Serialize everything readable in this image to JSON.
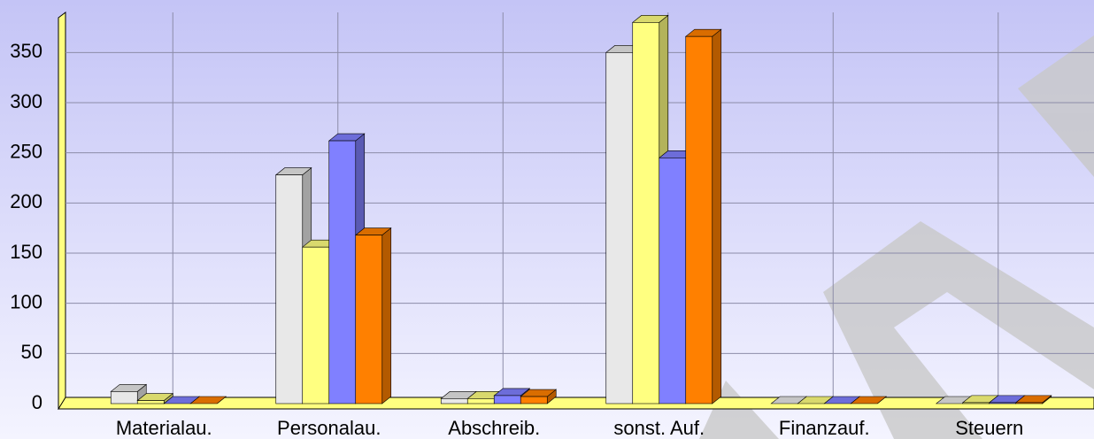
{
  "chart_data": {
    "type": "bar",
    "categories": [
      "Materialau.",
      "Personalau.",
      "Abschreib.",
      "sonst. Auf.",
      "Finanzauf.",
      "Steuern"
    ],
    "series": [
      {
        "color": "#e8e8e8",
        "values": [
          12,
          228,
          5,
          350,
          0,
          0
        ]
      },
      {
        "color": "#ffff80",
        "values": [
          3,
          156,
          5,
          380,
          0,
          1
        ]
      },
      {
        "color": "#8080ff",
        "values": [
          0,
          262,
          8,
          245,
          0,
          1
        ]
      },
      {
        "color": "#ff8000",
        "values": [
          0,
          168,
          7,
          366,
          0,
          1
        ]
      }
    ],
    "ylim": [
      0,
      390
    ],
    "yticks": [
      0,
      50,
      100,
      150,
      200,
      250,
      300,
      350
    ],
    "grid": true
  }
}
